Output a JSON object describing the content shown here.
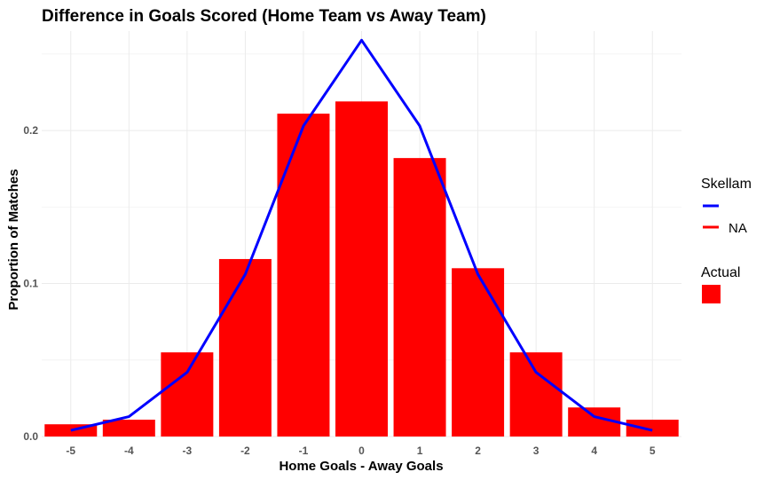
{
  "chart_data": {
    "type": "bar",
    "title": "Difference in Goals Scored (Home Team vs Away Team)",
    "xlabel": "Home Goals - Away Goals",
    "ylabel": "Proportion of Matches",
    "categories": [
      "-5",
      "-4",
      "-3",
      "-2",
      "-1",
      "0",
      "1",
      "2",
      "3",
      "4",
      "5"
    ],
    "x": [
      -5,
      -4,
      -3,
      -2,
      -1,
      0,
      1,
      2,
      3,
      4,
      5
    ],
    "series": [
      {
        "name": "Actual",
        "type": "bar",
        "color": "#ff0000",
        "values": [
          0.008,
          0.011,
          0.055,
          0.116,
          0.211,
          0.219,
          0.182,
          0.11,
          0.055,
          0.019,
          0.011
        ]
      },
      {
        "name": "Skellam",
        "type": "line",
        "color": "#0000ff",
        "values": [
          0.004,
          0.013,
          0.042,
          0.106,
          0.203,
          0.259,
          0.203,
          0.106,
          0.042,
          0.013,
          0.004
        ]
      }
    ],
    "ylim": [
      0,
      0.265
    ],
    "yticks": [
      0.0,
      0.1,
      0.2
    ],
    "ytick_labels": [
      "0.0",
      "0.1",
      "0.2"
    ],
    "xlim": [
      -5.5,
      5.5
    ],
    "grid": true,
    "legend_position": "right",
    "legend": {
      "skellam_title": "Skellam",
      "skellam_entries": [
        "",
        "NA"
      ],
      "actual_title": "Actual"
    }
  }
}
